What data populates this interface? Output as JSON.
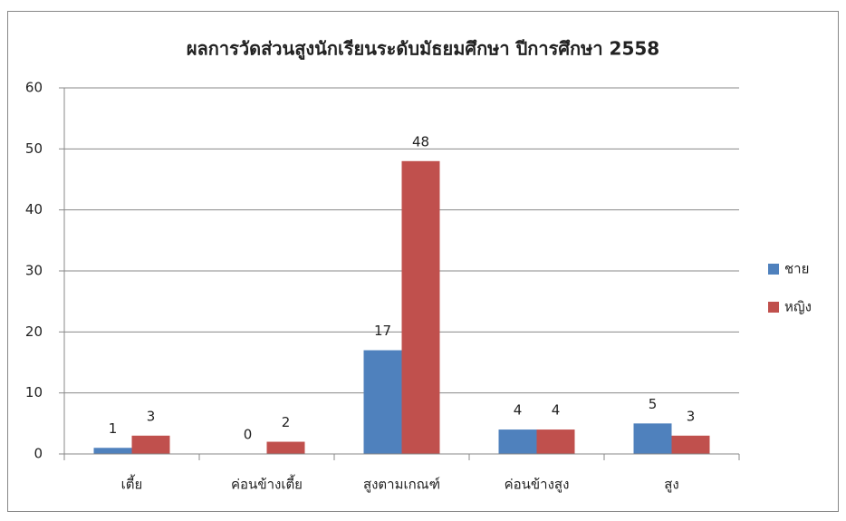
{
  "chart_data": {
    "type": "bar",
    "title": "ผลการวัดส่วนสูงนักเรียนระดับมัธยมศึกษา ปีการศึกษา 2558",
    "categories": [
      "เตี้ย",
      "ค่อนข้างเตี้ย",
      "สูงตามเกณฑ์",
      "ค่อนข้างสูง",
      "สูง"
    ],
    "series": [
      {
        "name": "ชาย",
        "color": "#4f81bd",
        "values": [
          1,
          0,
          17,
          4,
          5
        ]
      },
      {
        "name": "หญิง",
        "color": "#c0504d",
        "values": [
          3,
          2,
          48,
          4,
          3
        ]
      }
    ],
    "ylim": [
      0,
      60
    ],
    "yticks": [
      0,
      10,
      20,
      30,
      40,
      50,
      60
    ],
    "grid": true,
    "legend": "right"
  }
}
